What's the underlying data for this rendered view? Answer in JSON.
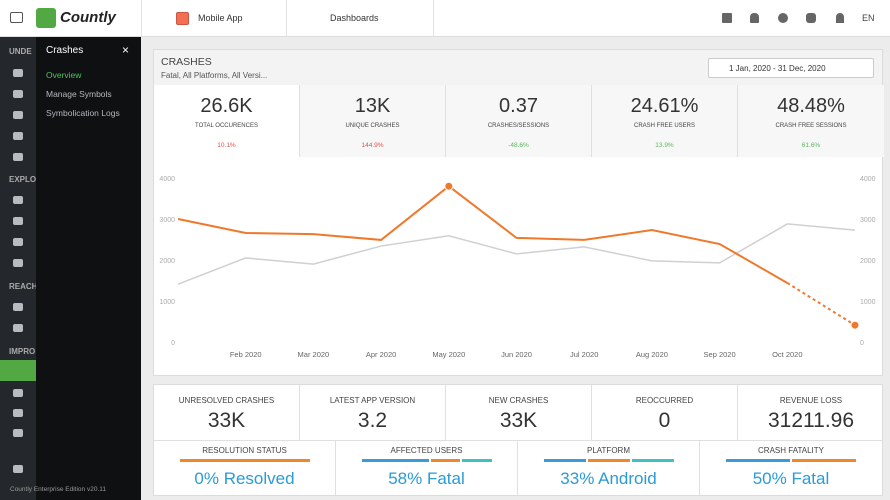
{
  "topbar": {
    "logo": "Countly",
    "app": "Mobile App",
    "dashboards": "Dashboards",
    "language": "EN"
  },
  "sidebar": {
    "sections": [
      "UNDE",
      "EXPLO",
      "REACH",
      "IMPRO"
    ],
    "footer": "Countly Enterprise Edition v20.11"
  },
  "submenu": {
    "title": "Crashes",
    "items": [
      "Overview",
      "Manage Symbols",
      "Symbolication Logs"
    ]
  },
  "header": {
    "title": "CRASHES",
    "filter": "Fatal, All Platforms, All Versi...",
    "date_range": "1 Jan, 2020 - 31 Dec, 2020"
  },
  "kpis": [
    {
      "value": "26.6K",
      "label": "TOTAL OCCURENCES",
      "change": "10.1%"
    },
    {
      "value": "13K",
      "label": "UNIQUE CRASHES",
      "change": "144.9%"
    },
    {
      "value": "0.37",
      "label": "CRASHES/SESSIONS",
      "change": "-48.6%"
    },
    {
      "value": "24.61%",
      "label": "CRASH FREE USERS",
      "change": "13.9%"
    },
    {
      "value": "48.48%",
      "label": "CRASH FREE SESSIONS",
      "change": "61.6%"
    }
  ],
  "chart_data": {
    "type": "line",
    "categories": [
      null,
      "Feb 2020",
      "Mar 2020",
      "Apr 2020",
      "May 2020",
      "Jun 2020",
      "Jul 2020",
      "Aug 2020",
      "Sep 2020",
      "Oct 2020",
      null
    ],
    "series": [
      {
        "color": "#d0d0d0",
        "values": [
          1410,
          2050,
          1900,
          2340,
          2590,
          2150,
          2320,
          1980,
          1930,
          2880,
          2730
        ]
      },
      {
        "color": "#f0782b",
        "values": [
          3000,
          2660,
          2630,
          2490,
          3800,
          2540,
          2490,
          2730,
          2390,
          1440,
          410
        ]
      }
    ],
    "ylim": [
      0,
      4000
    ],
    "yticks": [
      0,
      1000,
      2000,
      3000,
      4000
    ],
    "y2lim": [
      0,
      4000
    ],
    "y2ticks": [
      0,
      1000,
      2000,
      3000,
      4000
    ],
    "grid": false
  },
  "stats": [
    {
      "label": "UNRESOLVED CRASHES",
      "value": "33K"
    },
    {
      "label": "LATEST APP VERSION",
      "value": "3.2"
    },
    {
      "label": "NEW CRASHES",
      "value": "33K"
    },
    {
      "label": "REOCCURRED",
      "value": "0"
    },
    {
      "label": "REVENUE LOSS",
      "value": "31211.96"
    }
  ],
  "summaries": [
    {
      "label": "RESOLUTION STATUS",
      "value": "0% Resolved"
    },
    {
      "label": "AFFECTED USERS",
      "value": "58% Fatal"
    },
    {
      "label": "PLATFORM",
      "value": "33% Android"
    },
    {
      "label": "CRASH FATALITY",
      "value": "50% Fatal"
    }
  ]
}
